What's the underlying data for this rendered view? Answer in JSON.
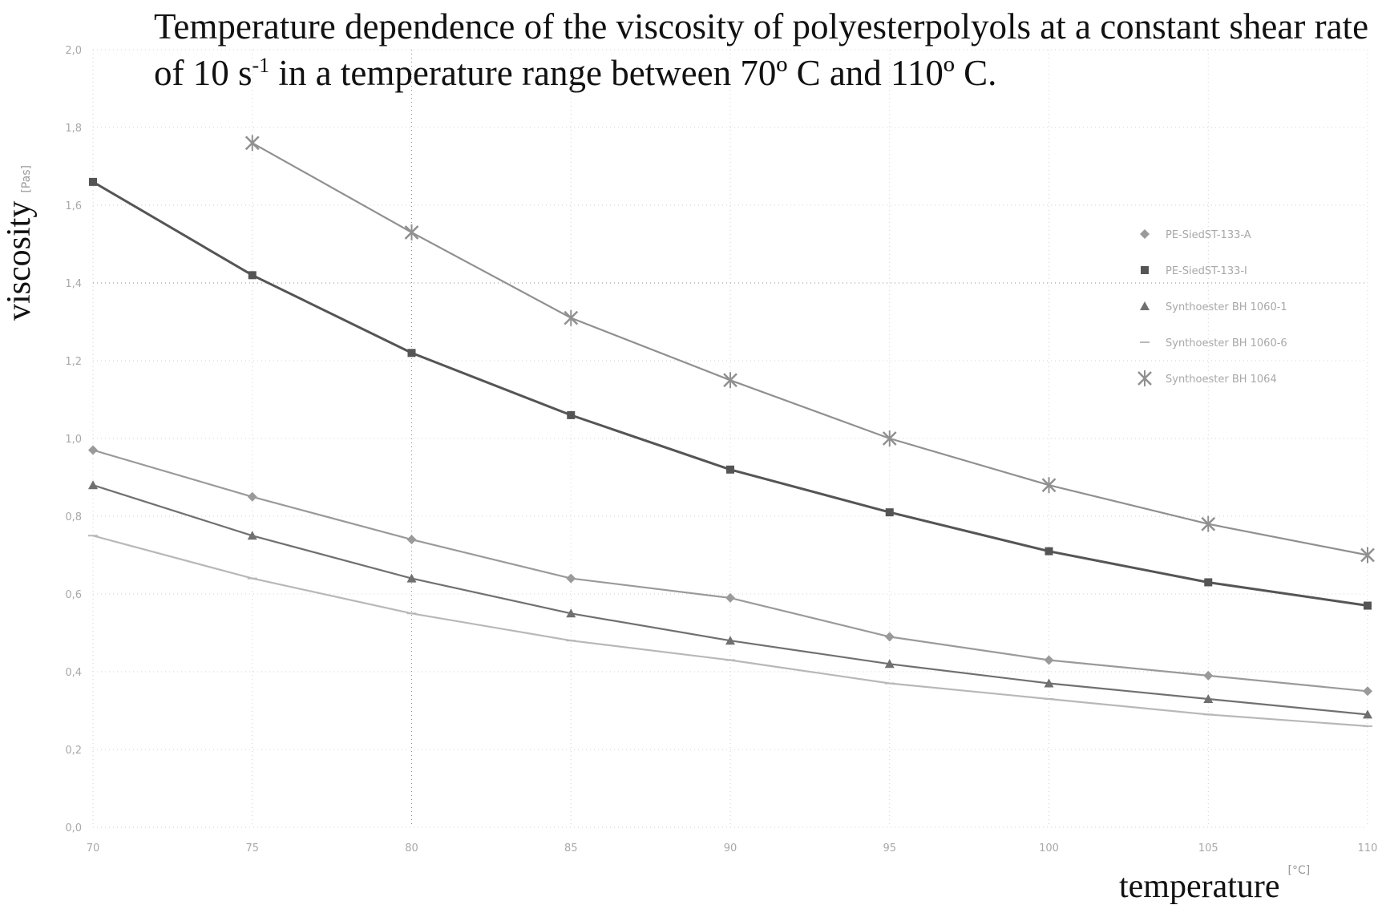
{
  "chart_data": {
    "type": "line",
    "title_main": "Temperature dependence of the viscosity of polyesterpolyols at a constant shear rate of 10 s",
    "title_sup": "-1",
    "title_end": " in a temperature range between 70º C and 110º C.",
    "xlabel": "temperature",
    "xlabel_unit": "[°C]",
    "ylabel": "viscosity",
    "ylabel_unit": "[Pas]",
    "xlim": [
      70,
      110
    ],
    "ylim": [
      0.0,
      2.0
    ],
    "x_ticks": [
      "70",
      "75",
      "80",
      "85",
      "90",
      "95",
      "100",
      "105",
      "110"
    ],
    "y_ticks": [
      "0,0",
      "0,2",
      "0,4",
      "0,6",
      "0,8",
      "1,0",
      "1,2",
      "1,4",
      "1,6",
      "1,8",
      "2,0"
    ],
    "x": [
      70,
      75,
      80,
      85,
      90,
      95,
      100,
      105,
      110
    ],
    "grid": "dotted",
    "legend_position": "right",
    "series": [
      {
        "name": "PE-SiedST-133-A",
        "marker": "diamond",
        "color": "#9a9a9a",
        "values": [
          0.97,
          0.85,
          0.74,
          0.64,
          0.59,
          0.49,
          0.43,
          0.39,
          0.35
        ]
      },
      {
        "name": "PE-SiedST-133-I",
        "marker": "square",
        "color": "#555555",
        "values": [
          1.66,
          1.42,
          1.22,
          1.06,
          0.92,
          0.81,
          0.71,
          0.63,
          0.57
        ]
      },
      {
        "name": "Synthoester BH 1060-1",
        "marker": "triangle",
        "color": "#707070",
        "values": [
          0.88,
          0.75,
          0.64,
          0.55,
          0.48,
          0.42,
          0.37,
          0.33,
          0.29
        ]
      },
      {
        "name": "Synthoester BH 1060-6",
        "marker": "dash",
        "color": "#b8b8b8",
        "values": [
          0.75,
          0.64,
          0.55,
          0.48,
          0.43,
          0.37,
          0.33,
          0.29,
          0.26
        ]
      },
      {
        "name": "Synthoester BH 1064",
        "marker": "star",
        "color": "#909090",
        "values": [
          null,
          1.76,
          1.53,
          1.31,
          1.15,
          1.0,
          0.88,
          0.78,
          0.7
        ]
      }
    ]
  }
}
